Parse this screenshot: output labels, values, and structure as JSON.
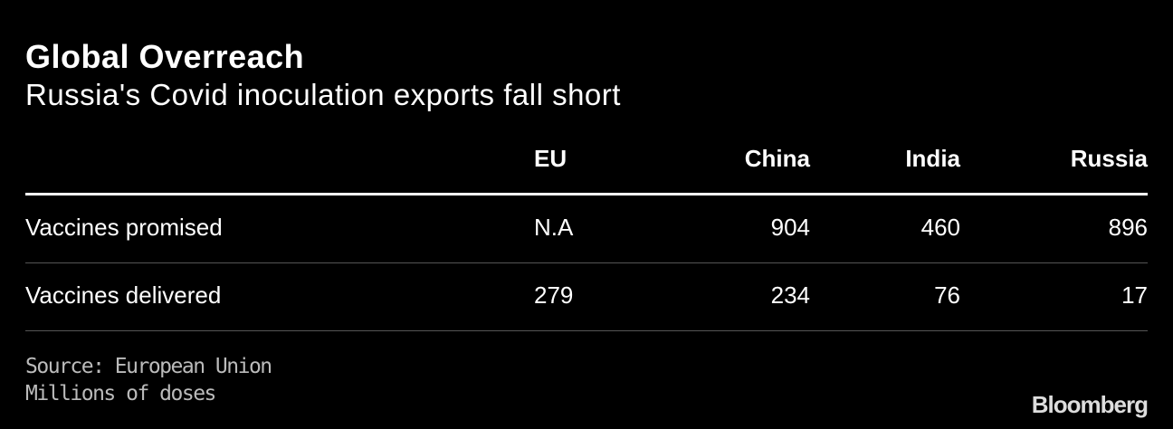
{
  "header": {
    "title": "Global Overreach",
    "subtitle": "Russia's Covid inoculation exports fall short"
  },
  "table": {
    "columns": [
      "EU",
      "China",
      "India",
      "Russia"
    ],
    "rows": [
      {
        "label": "Vaccines promised",
        "cells": [
          "N.A",
          904,
          460,
          896
        ]
      },
      {
        "label": "Vaccines delivered",
        "cells": [
          279,
          234,
          76,
          17
        ]
      }
    ]
  },
  "footer": {
    "source": "Source: European Union",
    "note": "Millions of doses",
    "brand": "Bloomberg"
  }
}
